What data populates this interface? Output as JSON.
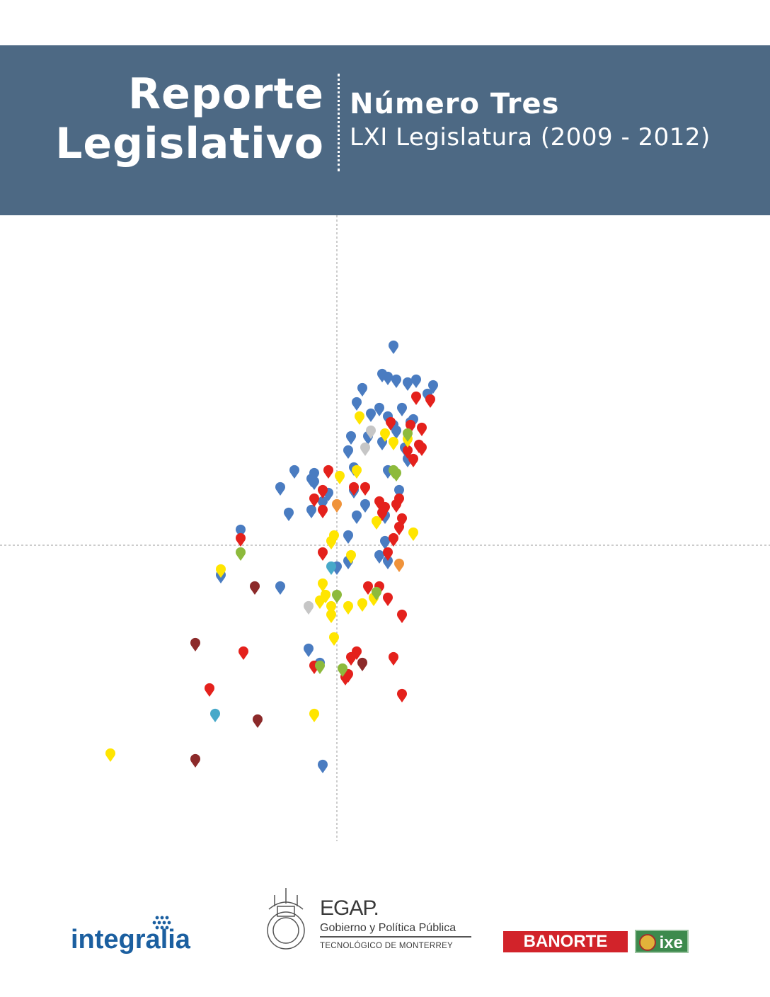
{
  "header": {
    "title_line1": "Reporte",
    "title_line2": "Legislativo",
    "number": "Número Tres",
    "legislature": "LXI Legislatura (2009 - 2012)"
  },
  "colors": {
    "banner": "#4d6984",
    "blue": "#4a7cc1",
    "red": "#e4211c",
    "yellow": "#ffe500",
    "green": "#8dba3c",
    "maroon": "#8c2a2a",
    "gray": "#c6c6c6",
    "orange": "#f0933a",
    "teal": "#47a9c9"
  },
  "chart_data": {
    "type": "scatter",
    "axes": "crossed dashed axes, no tick labels",
    "x_range": [
      -8,
      12
    ],
    "y_range": [
      -10,
      8
    ],
    "series": [
      {
        "color": "blue",
        "points": [
          [
            2.0,
            7.0
          ],
          [
            1.6,
            6.0
          ],
          [
            1.8,
            5.9
          ],
          [
            2.1,
            5.8
          ],
          [
            2.5,
            5.7
          ],
          [
            2.8,
            5.8
          ],
          [
            3.4,
            5.6
          ],
          [
            3.2,
            5.3
          ],
          [
            0.9,
            5.5
          ],
          [
            0.7,
            5.0
          ],
          [
            1.2,
            4.6
          ],
          [
            1.5,
            4.8
          ],
          [
            1.8,
            4.5
          ],
          [
            2.3,
            4.8
          ],
          [
            2.7,
            4.4
          ],
          [
            2.0,
            4.2
          ],
          [
            2.1,
            4.0
          ],
          [
            1.6,
            3.6
          ],
          [
            0.5,
            3.8
          ],
          [
            0.4,
            3.3
          ],
          [
            0.6,
            2.7
          ],
          [
            1.1,
            3.8
          ],
          [
            2.5,
            3.0
          ],
          [
            1.8,
            2.6
          ],
          [
            2.4,
            3.4
          ],
          [
            2.6,
            4.3
          ],
          [
            -1.5,
            2.6
          ],
          [
            -0.9,
            2.3
          ],
          [
            -0.8,
            2.2
          ],
          [
            -0.3,
            1.8
          ],
          [
            -0.9,
            1.2
          ],
          [
            -0.5,
            1.5
          ],
          [
            -1.7,
            1.1
          ],
          [
            2.2,
            1.9
          ],
          [
            1.7,
            0.1
          ],
          [
            1.8,
            -0.6
          ],
          [
            0.0,
            -0.8
          ],
          [
            0.7,
            1.0
          ],
          [
            1.5,
            -0.4
          ],
          [
            0.4,
            0.3
          ],
          [
            -0.8,
            2.5
          ],
          [
            1.0,
            1.4
          ],
          [
            0.6,
            1.9
          ],
          [
            -2.0,
            2.0
          ],
          [
            -4.1,
            -1.1
          ],
          [
            -2.0,
            -1.5
          ],
          [
            -1.0,
            -3.7
          ],
          [
            -0.6,
            -4.2
          ],
          [
            -0.5,
            -7.8
          ],
          [
            1.7,
            1.0
          ],
          [
            -3.4,
            0.5
          ],
          [
            0.4,
            -0.6
          ]
        ]
      },
      {
        "color": "red",
        "points": [
          [
            2.8,
            5.2
          ],
          [
            3.3,
            5.1
          ],
          [
            1.9,
            4.3
          ],
          [
            2.6,
            4.2
          ],
          [
            3.0,
            4.1
          ],
          [
            2.9,
            3.5
          ],
          [
            3.0,
            3.4
          ],
          [
            2.5,
            3.3
          ],
          [
            2.7,
            3.0
          ],
          [
            0.6,
            2.0
          ],
          [
            1.0,
            2.0
          ],
          [
            -0.3,
            2.6
          ],
          [
            -0.5,
            1.9
          ],
          [
            1.5,
            1.5
          ],
          [
            1.7,
            1.3
          ],
          [
            2.1,
            1.4
          ],
          [
            2.2,
            1.6
          ],
          [
            1.6,
            1.1
          ],
          [
            2.3,
            0.9
          ],
          [
            -0.8,
            1.6
          ],
          [
            -0.5,
            1.2
          ],
          [
            2.2,
            0.6
          ],
          [
            2.0,
            0.2
          ],
          [
            1.8,
            -0.3
          ],
          [
            -0.5,
            -0.3
          ],
          [
            -3.4,
            0.2
          ],
          [
            1.1,
            -1.5
          ],
          [
            1.5,
            -1.5
          ],
          [
            1.8,
            -1.9
          ],
          [
            2.3,
            -2.5
          ],
          [
            0.7,
            -3.8
          ],
          [
            -3.3,
            -3.8
          ],
          [
            -4.5,
            -5.1
          ],
          [
            -0.8,
            -4.3
          ],
          [
            2.0,
            -4.0
          ],
          [
            2.3,
            -5.3
          ],
          [
            0.5,
            -4.0
          ],
          [
            0.4,
            -4.6
          ],
          [
            0.3,
            -4.7
          ]
        ]
      },
      {
        "color": "yellow",
        "points": [
          [
            0.8,
            4.5
          ],
          [
            2.0,
            3.6
          ],
          [
            2.5,
            3.7
          ],
          [
            1.7,
            3.9
          ],
          [
            0.7,
            2.6
          ],
          [
            0.1,
            2.4
          ],
          [
            1.4,
            0.8
          ],
          [
            2.7,
            0.4
          ],
          [
            -0.1,
            0.3
          ],
          [
            -0.2,
            0.1
          ],
          [
            0.5,
            -0.4
          ],
          [
            -4.1,
            -0.9
          ],
          [
            -0.5,
            -1.4
          ],
          [
            -0.6,
            -2.0
          ],
          [
            -0.4,
            -1.8
          ],
          [
            1.3,
            -1.9
          ],
          [
            -0.2,
            -2.5
          ],
          [
            0.4,
            -2.2
          ],
          [
            -0.1,
            -3.3
          ],
          [
            -8.0,
            -7.4
          ],
          [
            -0.8,
            -6.0
          ],
          [
            0.9,
            -2.1
          ],
          [
            -0.2,
            -2.2
          ]
        ]
      },
      {
        "color": "green",
        "points": [
          [
            2.5,
            3.9
          ],
          [
            2.0,
            2.6
          ],
          [
            2.1,
            2.5
          ],
          [
            -3.4,
            -0.3
          ],
          [
            1.4,
            -1.7
          ],
          [
            0.0,
            -1.8
          ],
          [
            -0.6,
            -4.3
          ],
          [
            0.2,
            -4.4
          ]
        ]
      },
      {
        "color": "maroon",
        "points": [
          [
            -2.9,
            -1.5
          ],
          [
            -5.0,
            -3.5
          ],
          [
            0.9,
            -4.2
          ],
          [
            -2.8,
            -6.2
          ],
          [
            -5.0,
            -7.6
          ]
        ]
      },
      {
        "color": "gray",
        "points": [
          [
            1.2,
            4.0
          ],
          [
            1.0,
            3.4
          ],
          [
            -1.0,
            -2.2
          ]
        ]
      },
      {
        "color": "orange",
        "points": [
          [
            0.0,
            1.4
          ],
          [
            2.2,
            -0.7
          ]
        ]
      },
      {
        "color": "teal",
        "points": [
          [
            -0.2,
            -0.8
          ],
          [
            -4.3,
            -6.0
          ]
        ]
      }
    ]
  },
  "logos": {
    "integralia": "integralia",
    "egap_title": "EGAP.",
    "egap_subtitle": "Gobierno y Política Pública",
    "egap_institution": "TECNOLÓGICO DE MONTERREY",
    "banorte": "BANORTE",
    "ixe": "ixe"
  }
}
